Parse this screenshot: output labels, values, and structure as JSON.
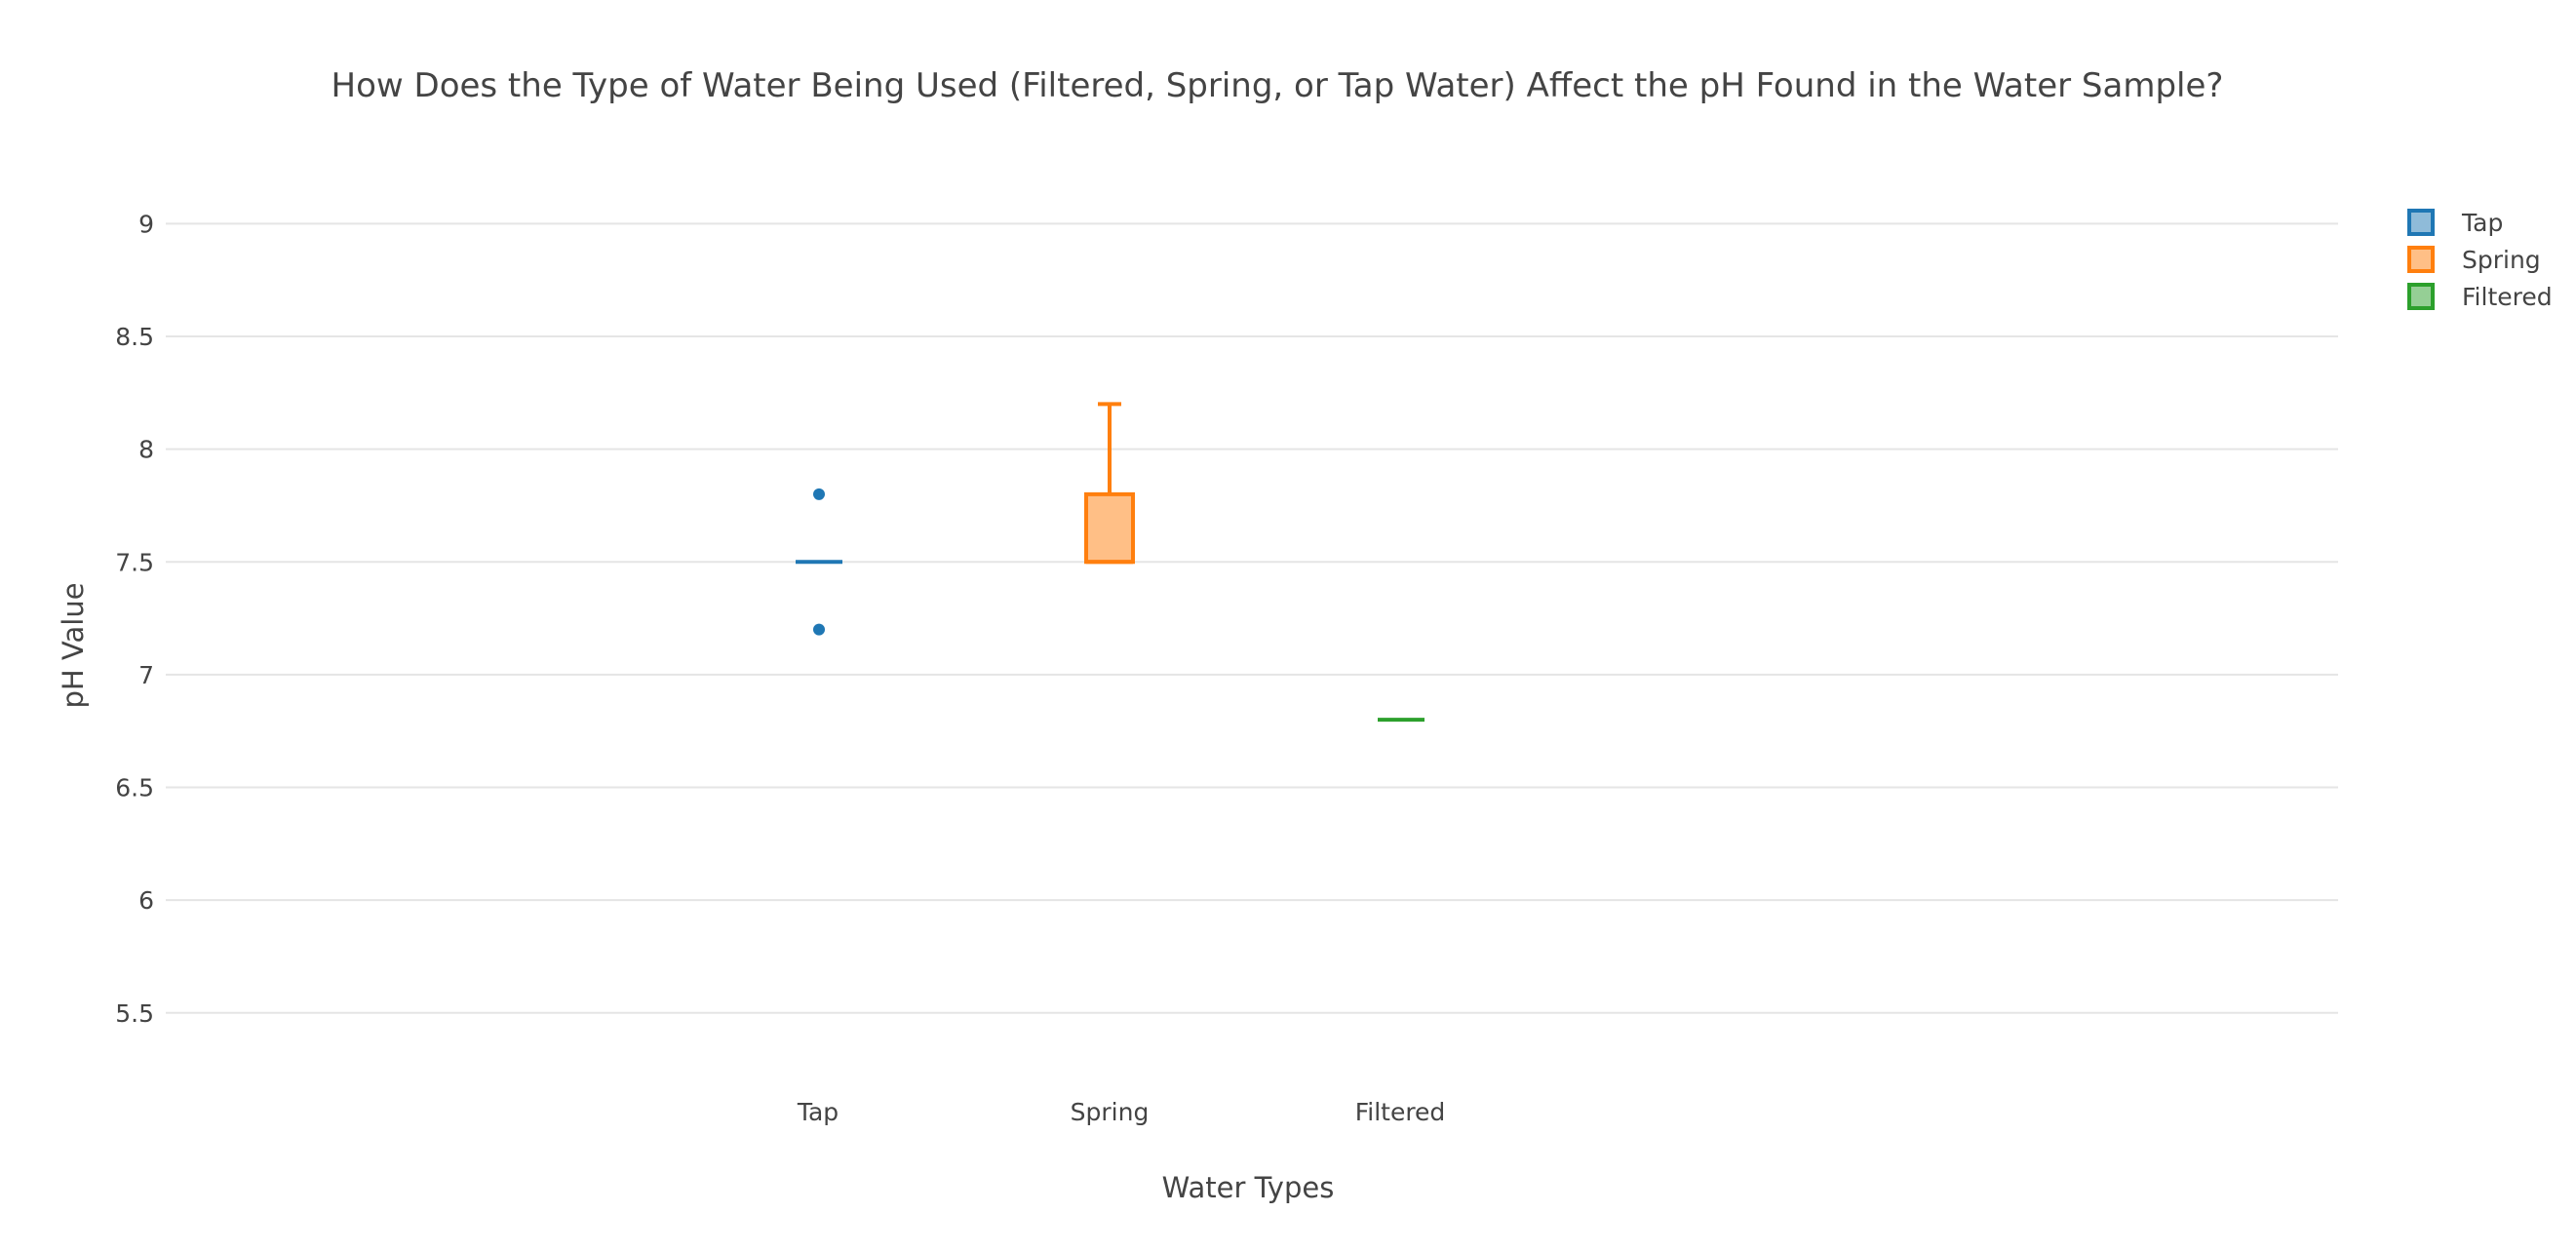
{
  "chart_data": {
    "type": "box",
    "title": "How Does the Type of Water Being Used (Filtered, Spring, or Tap Water) Affect the pH Found in the Water Sample?",
    "xlabel": "Water Types",
    "ylabel": "pH Value",
    "categories": [
      "Tap",
      "Spring",
      "Filtered"
    ],
    "ylim": [
      5.3,
      9.3
    ],
    "yticks": [
      9,
      8.5,
      8,
      7.5,
      7,
      6.5,
      6,
      5.5
    ],
    "grid": true,
    "legend_position": "top-right",
    "series": [
      {
        "name": "Tap",
        "color": "#1f77b4",
        "fill": "#8fbbd9",
        "min": 7.5,
        "q1": 7.5,
        "median": 7.5,
        "q3": 7.5,
        "max": 7.5,
        "outliers": [
          7.8,
          7.2
        ]
      },
      {
        "name": "Spring",
        "color": "#ff7f0e",
        "fill": "#ffbf86",
        "min": 7.5,
        "q1": 7.5,
        "median": 7.5,
        "q3": 7.8,
        "max": 8.2,
        "outliers": []
      },
      {
        "name": "Filtered",
        "color": "#2ca02c",
        "fill": "#95cf95",
        "min": 6.8,
        "q1": 6.8,
        "median": 6.8,
        "q3": 6.8,
        "max": 6.8,
        "outliers": []
      }
    ]
  }
}
